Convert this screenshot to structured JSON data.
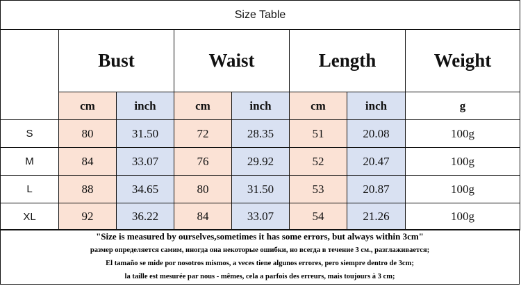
{
  "title": "Size Table",
  "table": {
    "groups": [
      "Bust",
      "Waist",
      "Length",
      "Weight"
    ],
    "units": [
      "cm",
      "inch",
      "cm",
      "inch",
      "cm",
      "inch",
      "g"
    ],
    "rows": [
      [
        "S",
        "80",
        "31.50",
        "72",
        "28.35",
        "51",
        "20.08",
        "100g"
      ],
      [
        "M",
        "84",
        "33.07",
        "76",
        "29.92",
        "52",
        "20.47",
        "100g"
      ],
      [
        "L",
        "88",
        "34.65",
        "80",
        "31.50",
        "53",
        "20.87",
        "100g"
      ],
      [
        "XL",
        "92",
        "36.22",
        "84",
        "33.07",
        "54",
        "21.26",
        "100g"
      ]
    ]
  },
  "notes": [
    "\"Size is measured by ourselves,sometimes it has some errors, but always within 3cm\"",
    "размер определяется самим, иногда она некоторые ошибки, но всегда в течение 3 см., разглаживается;",
    "El tamaño se mide por nosotros mismos, a veces tiene algunos errores, pero siempre dentro de 3cm;",
    "la taille est mesurée par nous - mêmes, cela a parfois des erreurs, mais toujours à 3 cm;"
  ]
}
